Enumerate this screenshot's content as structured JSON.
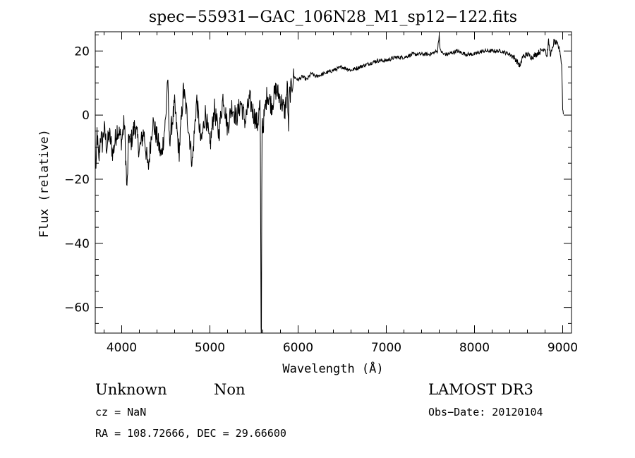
{
  "chart_data": {
    "type": "line",
    "title": "spec−55931−GAC_106N28_M1_sp12−122.fits",
    "xlabel": "Wavelength (Å)",
    "ylabel": "Flux (relative)",
    "xlim": [
      3700,
      9100
    ],
    "ylim": [
      -68,
      26
    ],
    "x_ticks": [
      4000,
      5000,
      6000,
      7000,
      8000,
      9000
    ],
    "y_ticks": [
      20,
      0,
      -20,
      -40,
      -60
    ],
    "x_tick_labels": [
      "4000",
      "5000",
      "6000",
      "7000",
      "8000",
      "9000"
    ],
    "y_tick_labels": [
      "20",
      "0",
      "−20",
      "−40",
      "−60"
    ],
    "grid": false,
    "line_color": "#000000",
    "series": [
      {
        "x": [
          3700,
          3710,
          3720,
          3740,
          3760,
          3780,
          3800,
          3830,
          3860,
          3900,
          3950,
          4000,
          4030,
          4060,
          4080,
          4100,
          4150,
          4200,
          4250,
          4300,
          4350,
          4400,
          4450,
          4500,
          4520,
          4540,
          4600,
          4650,
          4700,
          4750,
          4800,
          4850,
          4900,
          4950,
          5000,
          5050,
          5100,
          5150,
          5200,
          5250,
          5300,
          5350,
          5400,
          5450,
          5500,
          5540,
          5570,
          5580,
          5585,
          5590,
          5600,
          5650,
          5700,
          5750,
          5800,
          5850,
          5880,
          5890,
          5900,
          5920,
          5950,
          6000,
          6050,
          6100,
          6150,
          6200,
          6300,
          6400,
          6500,
          6600,
          6700,
          6800,
          6900,
          7000,
          7100,
          7200,
          7300,
          7400,
          7500,
          7580,
          7600,
          7610,
          7620,
          7650,
          7700,
          7800,
          7900,
          8000,
          8100,
          8200,
          8300,
          8400,
          8450,
          8500,
          8520,
          8540,
          8600,
          8650,
          8700,
          8750,
          8800,
          8820,
          8840,
          8860,
          8880,
          8900,
          8940,
          8970,
          8990,
          9000,
          9010
        ],
        "y": [
          -8,
          -20,
          -5,
          -15,
          -6,
          -9,
          -4,
          -10,
          -6,
          -12,
          -4,
          -8,
          -2,
          -24,
          -6,
          -9,
          -3,
          -11,
          -5,
          -17,
          -2,
          -7,
          -13,
          -1,
          12,
          -8,
          3,
          -12,
          8,
          -2,
          -15,
          5,
          -9,
          1,
          -10,
          2,
          -6,
          6,
          -4,
          3,
          -1,
          4,
          -2,
          5,
          0,
          -3,
          4,
          -68,
          -68,
          2,
          -4,
          7,
          3,
          8,
          5,
          1,
          9,
          -6,
          6,
          8,
          12,
          11,
          12,
          11,
          13,
          12,
          13,
          14,
          15,
          14,
          15,
          16,
          17,
          17,
          18,
          18,
          19,
          19,
          19,
          20,
          25,
          20,
          20,
          19,
          19,
          20,
          19,
          19,
          20,
          20,
          20,
          19,
          18,
          16,
          15,
          18,
          19,
          18,
          19,
          20,
          21,
          18,
          23,
          19,
          20,
          23,
          22,
          20,
          15,
          2,
          0
        ]
      }
    ],
    "annotations": {
      "object_class": "Unknown",
      "subclass": "Non",
      "survey": "LAMOST DR3",
      "cz": "cz = NaN",
      "obs_date": "Obs−Date: 20120104",
      "coords": "RA = 108.72666, DEC =  29.66600"
    }
  }
}
